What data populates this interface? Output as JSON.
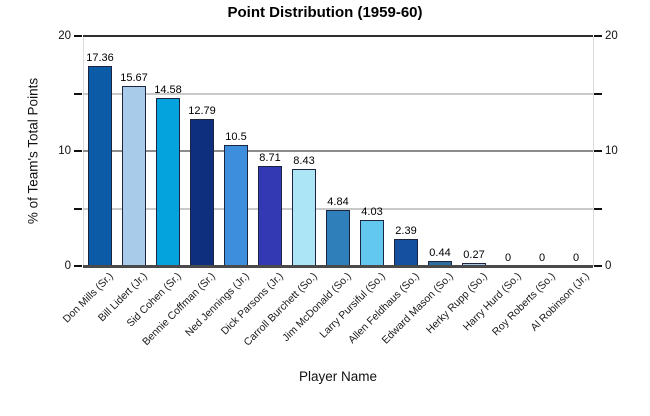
{
  "page": {
    "background": "#ffffff"
  },
  "chart_data": {
    "type": "bar",
    "title": "Point Distribution (1959-60)",
    "xlabel": "Player Name",
    "ylabel": "% of Team's Total Points",
    "ylim": [
      0,
      20
    ],
    "yticks": [
      0,
      5,
      10,
      15,
      20
    ],
    "ytick_labeled_values": [
      0,
      10,
      20
    ],
    "ytick_labels": [
      "0",
      "10",
      "20"
    ],
    "grid": "horizontal, minor ticks at 5 and 15, labels on both left and right axes",
    "legend": "none",
    "categories": [
      "Don Mills (Sr.)",
      "Bill Lidert (Jr.)",
      "Sid Cohen (Sr.)",
      "Bennie Coffman (Sr.)",
      "Ned Jennings (Jr.)",
      "Dick Parsons (Jr.)",
      "Carroll Burchett (So.)",
      "Jim McDonald (So.)",
      "Larry Pursiful (So.)",
      "Allen Feldhaus (So.)",
      "Edward Mason (So.)",
      "Herky Rupp (So.)",
      "Harry Hurd (So.)",
      "Roy Roberts (So.)",
      "Al Robinson (Jr.)"
    ],
    "values": [
      17.36,
      15.67,
      14.58,
      12.79,
      10.5,
      8.71,
      8.43,
      4.84,
      4.03,
      2.39,
      0.44,
      0.27,
      0,
      0,
      0
    ],
    "value_labels": [
      "17.36",
      "15.67",
      "14.58",
      "12.79",
      "10.5",
      "8.71",
      "8.43",
      "4.84",
      "4.03",
      "2.39",
      "0.44",
      "0.27",
      "0",
      "0",
      "0"
    ],
    "bar_colors": [
      "#0b5ba7",
      "#a7cbe9",
      "#04a3de",
      "#0d2f7d",
      "#3e8ede",
      "#3339b2",
      "#ace6f6",
      "#2e7fba",
      "#63c8f0",
      "#14509f",
      "#2d6e9e",
      "#a9c6e2",
      "#0b5ba7",
      "#a7cbe9",
      "#04a3de"
    ],
    "axis_color": "#4a4a4a",
    "frame_top_color": "#2f2f2f",
    "grid_major_color": "#8c8c8c",
    "grid_minor_color": "#c9c9c9"
  }
}
